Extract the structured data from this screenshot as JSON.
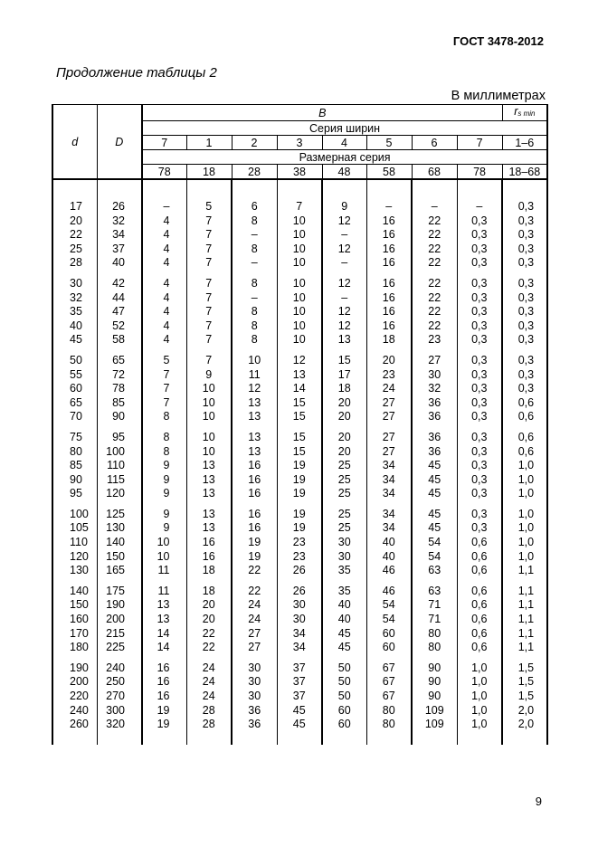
{
  "header": {
    "standard": "ГОСТ 3478-2012"
  },
  "caption": "Продолжение таблицы 2",
  "units": "В миллиметрах",
  "page_number": "9",
  "table": {
    "col_d": "d",
    "col_D": "D",
    "group_B": "B",
    "group_r": "r",
    "group_r_sub": "s min",
    "width_series_label": "Серия ширин",
    "width_series": [
      "7",
      "1",
      "2",
      "3",
      "4",
      "5",
      "6",
      "7",
      "1–6"
    ],
    "size_series_label": "Размерная серия",
    "size_series": [
      "78",
      "18",
      "28",
      "38",
      "48",
      "58",
      "68",
      "78",
      "18–68"
    ],
    "groups": [
      [
        [
          "17",
          "26",
          "–",
          "5",
          "6",
          "7",
          "9",
          "–",
          "–",
          "–",
          "0,3"
        ],
        [
          "20",
          "32",
          "4",
          "7",
          "8",
          "10",
          "12",
          "16",
          "22",
          "0,3",
          "0,3"
        ],
        [
          "22",
          "34",
          "4",
          "7",
          "–",
          "10",
          "–",
          "16",
          "22",
          "0,3",
          "0,3"
        ],
        [
          "25",
          "37",
          "4",
          "7",
          "8",
          "10",
          "12",
          "16",
          "22",
          "0,3",
          "0,3"
        ],
        [
          "28",
          "40",
          "4",
          "7",
          "–",
          "10",
          "–",
          "16",
          "22",
          "0,3",
          "0,3"
        ]
      ],
      [
        [
          "30",
          "42",
          "4",
          "7",
          "8",
          "10",
          "12",
          "16",
          "22",
          "0,3",
          "0,3"
        ],
        [
          "32",
          "44",
          "4",
          "7",
          "–",
          "10",
          "–",
          "16",
          "22",
          "0,3",
          "0,3"
        ],
        [
          "35",
          "47",
          "4",
          "7",
          "8",
          "10",
          "12",
          "16",
          "22",
          "0,3",
          "0,3"
        ],
        [
          "40",
          "52",
          "4",
          "7",
          "8",
          "10",
          "12",
          "16",
          "22",
          "0,3",
          "0,3"
        ],
        [
          "45",
          "58",
          "4",
          "7",
          "8",
          "10",
          "13",
          "18",
          "23",
          "0,3",
          "0,3"
        ]
      ],
      [
        [
          "50",
          "65",
          "5",
          "7",
          "10",
          "12",
          "15",
          "20",
          "27",
          "0,3",
          "0,3"
        ],
        [
          "55",
          "72",
          "7",
          "9",
          "11",
          "13",
          "17",
          "23",
          "30",
          "0,3",
          "0,3"
        ],
        [
          "60",
          "78",
          "7",
          "10",
          "12",
          "14",
          "18",
          "24",
          "32",
          "0,3",
          "0,3"
        ],
        [
          "65",
          "85",
          "7",
          "10",
          "13",
          "15",
          "20",
          "27",
          "36",
          "0,3",
          "0,6"
        ],
        [
          "70",
          "90",
          "8",
          "10",
          "13",
          "15",
          "20",
          "27",
          "36",
          "0,3",
          "0,6"
        ]
      ],
      [
        [
          "75",
          "95",
          "8",
          "10",
          "13",
          "15",
          "20",
          "27",
          "36",
          "0,3",
          "0,6"
        ],
        [
          "80",
          "100",
          "8",
          "10",
          "13",
          "15",
          "20",
          "27",
          "36",
          "0,3",
          "0,6"
        ],
        [
          "85",
          "110",
          "9",
          "13",
          "16",
          "19",
          "25",
          "34",
          "45",
          "0,3",
          "1,0"
        ],
        [
          "90",
          "115",
          "9",
          "13",
          "16",
          "19",
          "25",
          "34",
          "45",
          "0,3",
          "1,0"
        ],
        [
          "95",
          "120",
          "9",
          "13",
          "16",
          "19",
          "25",
          "34",
          "45",
          "0,3",
          "1,0"
        ]
      ],
      [
        [
          "100",
          "125",
          "9",
          "13",
          "16",
          "19",
          "25",
          "34",
          "45",
          "0,3",
          "1,0"
        ],
        [
          "105",
          "130",
          "9",
          "13",
          "16",
          "19",
          "25",
          "34",
          "45",
          "0,3",
          "1,0"
        ],
        [
          "110",
          "140",
          "10",
          "16",
          "19",
          "23",
          "30",
          "40",
          "54",
          "0,6",
          "1,0"
        ],
        [
          "120",
          "150",
          "10",
          "16",
          "19",
          "23",
          "30",
          "40",
          "54",
          "0,6",
          "1,0"
        ],
        [
          "130",
          "165",
          "11",
          "18",
          "22",
          "26",
          "35",
          "46",
          "63",
          "0,6",
          "1,1"
        ]
      ],
      [
        [
          "140",
          "175",
          "11",
          "18",
          "22",
          "26",
          "35",
          "46",
          "63",
          "0,6",
          "1,1"
        ],
        [
          "150",
          "190",
          "13",
          "20",
          "24",
          "30",
          "40",
          "54",
          "71",
          "0,6",
          "1,1"
        ],
        [
          "160",
          "200",
          "13",
          "20",
          "24",
          "30",
          "40",
          "54",
          "71",
          "0,6",
          "1,1"
        ],
        [
          "170",
          "215",
          "14",
          "22",
          "27",
          "34",
          "45",
          "60",
          "80",
          "0,6",
          "1,1"
        ],
        [
          "180",
          "225",
          "14",
          "22",
          "27",
          "34",
          "45",
          "60",
          "80",
          "0,6",
          "1,1"
        ]
      ],
      [
        [
          "190",
          "240",
          "16",
          "24",
          "30",
          "37",
          "50",
          "67",
          "90",
          "1,0",
          "1,5"
        ],
        [
          "200",
          "250",
          "16",
          "24",
          "30",
          "37",
          "50",
          "67",
          "90",
          "1,0",
          "1,5"
        ],
        [
          "220",
          "270",
          "16",
          "24",
          "30",
          "37",
          "50",
          "67",
          "90",
          "1,0",
          "1,5"
        ],
        [
          "240",
          "300",
          "19",
          "28",
          "36",
          "45",
          "60",
          "80",
          "109",
          "1,0",
          "2,0"
        ],
        [
          "260",
          "320",
          "19",
          "28",
          "36",
          "45",
          "60",
          "80",
          "109",
          "1,0",
          "2,0"
        ]
      ]
    ]
  }
}
